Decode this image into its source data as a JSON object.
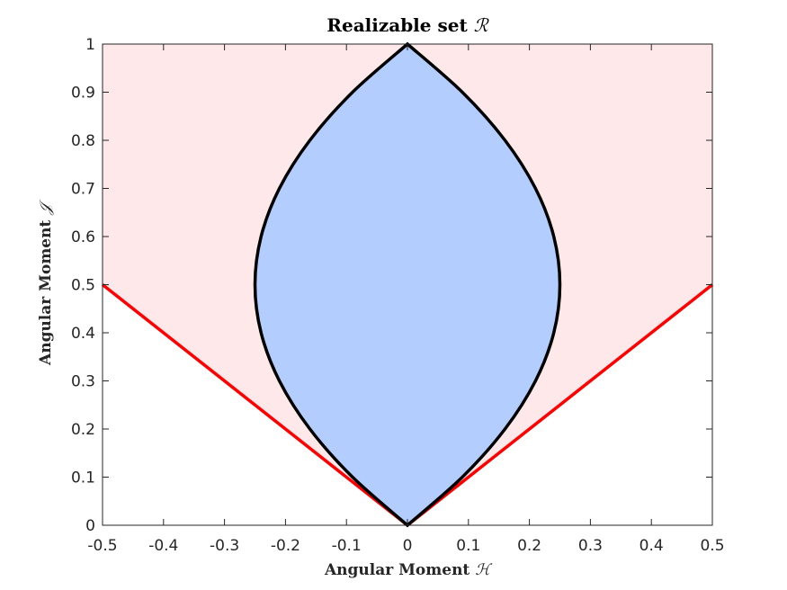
{
  "chart_data": {
    "type": "area",
    "title": "Realizable set",
    "title_symbol": "ℛ",
    "xlabel": "Angular Moment",
    "xlabel_symbol": "ℋ",
    "ylabel": "Angular Moment",
    "ylabel_symbol": "𝒥",
    "xlim": [
      -0.5,
      0.5
    ],
    "ylim": [
      0,
      1
    ],
    "xticks": [
      -0.5,
      -0.4,
      -0.3,
      -0.2,
      -0.1,
      0,
      0.1,
      0.2,
      0.3,
      0.4,
      0.5
    ],
    "xtick_labels": [
      "-0.5",
      "-0.4",
      "-0.3",
      "-0.2",
      "-0.1",
      "0",
      "0.1",
      "0.2",
      "0.3",
      "0.4",
      "0.5"
    ],
    "yticks": [
      0,
      0.1,
      0.2,
      0.3,
      0.4,
      0.5,
      0.6,
      0.7,
      0.8,
      0.9,
      1
    ],
    "ytick_labels": [
      "0",
      "0.1",
      "0.2",
      "0.3",
      "0.4",
      "0.5",
      "0.6",
      "0.7",
      "0.8",
      "0.9",
      "1"
    ],
    "grid": false,
    "colors": {
      "outer_region_fill": "#ffe8ea",
      "inner_region_fill": "#b3cdff",
      "inner_boundary": "#000000",
      "outer_boundary": "#ff0000"
    },
    "series": [
      {
        "role": "outer-region-boundary",
        "x": [
          -0.5,
          0,
          0.5
        ],
        "y": [
          0.5,
          0,
          0.5
        ]
      },
      {
        "role": "inner-region-right-boundary",
        "x": [
          0,
          0.09,
          0.16,
          0.21,
          0.24,
          0.25,
          0.24,
          0.21,
          0.16,
          0.09,
          0
        ],
        "y": [
          0,
          0.1,
          0.2,
          0.3,
          0.4,
          0.5,
          0.6,
          0.7,
          0.8,
          0.9,
          1
        ]
      },
      {
        "role": "inner-region-left-boundary",
        "x": [
          0,
          -0.09,
          -0.16,
          -0.21,
          -0.24,
          -0.25,
          -0.24,
          -0.21,
          -0.16,
          -0.09,
          0
        ],
        "y": [
          0,
          0.1,
          0.2,
          0.3,
          0.4,
          0.5,
          0.6,
          0.7,
          0.8,
          0.9,
          1
        ]
      }
    ]
  }
}
